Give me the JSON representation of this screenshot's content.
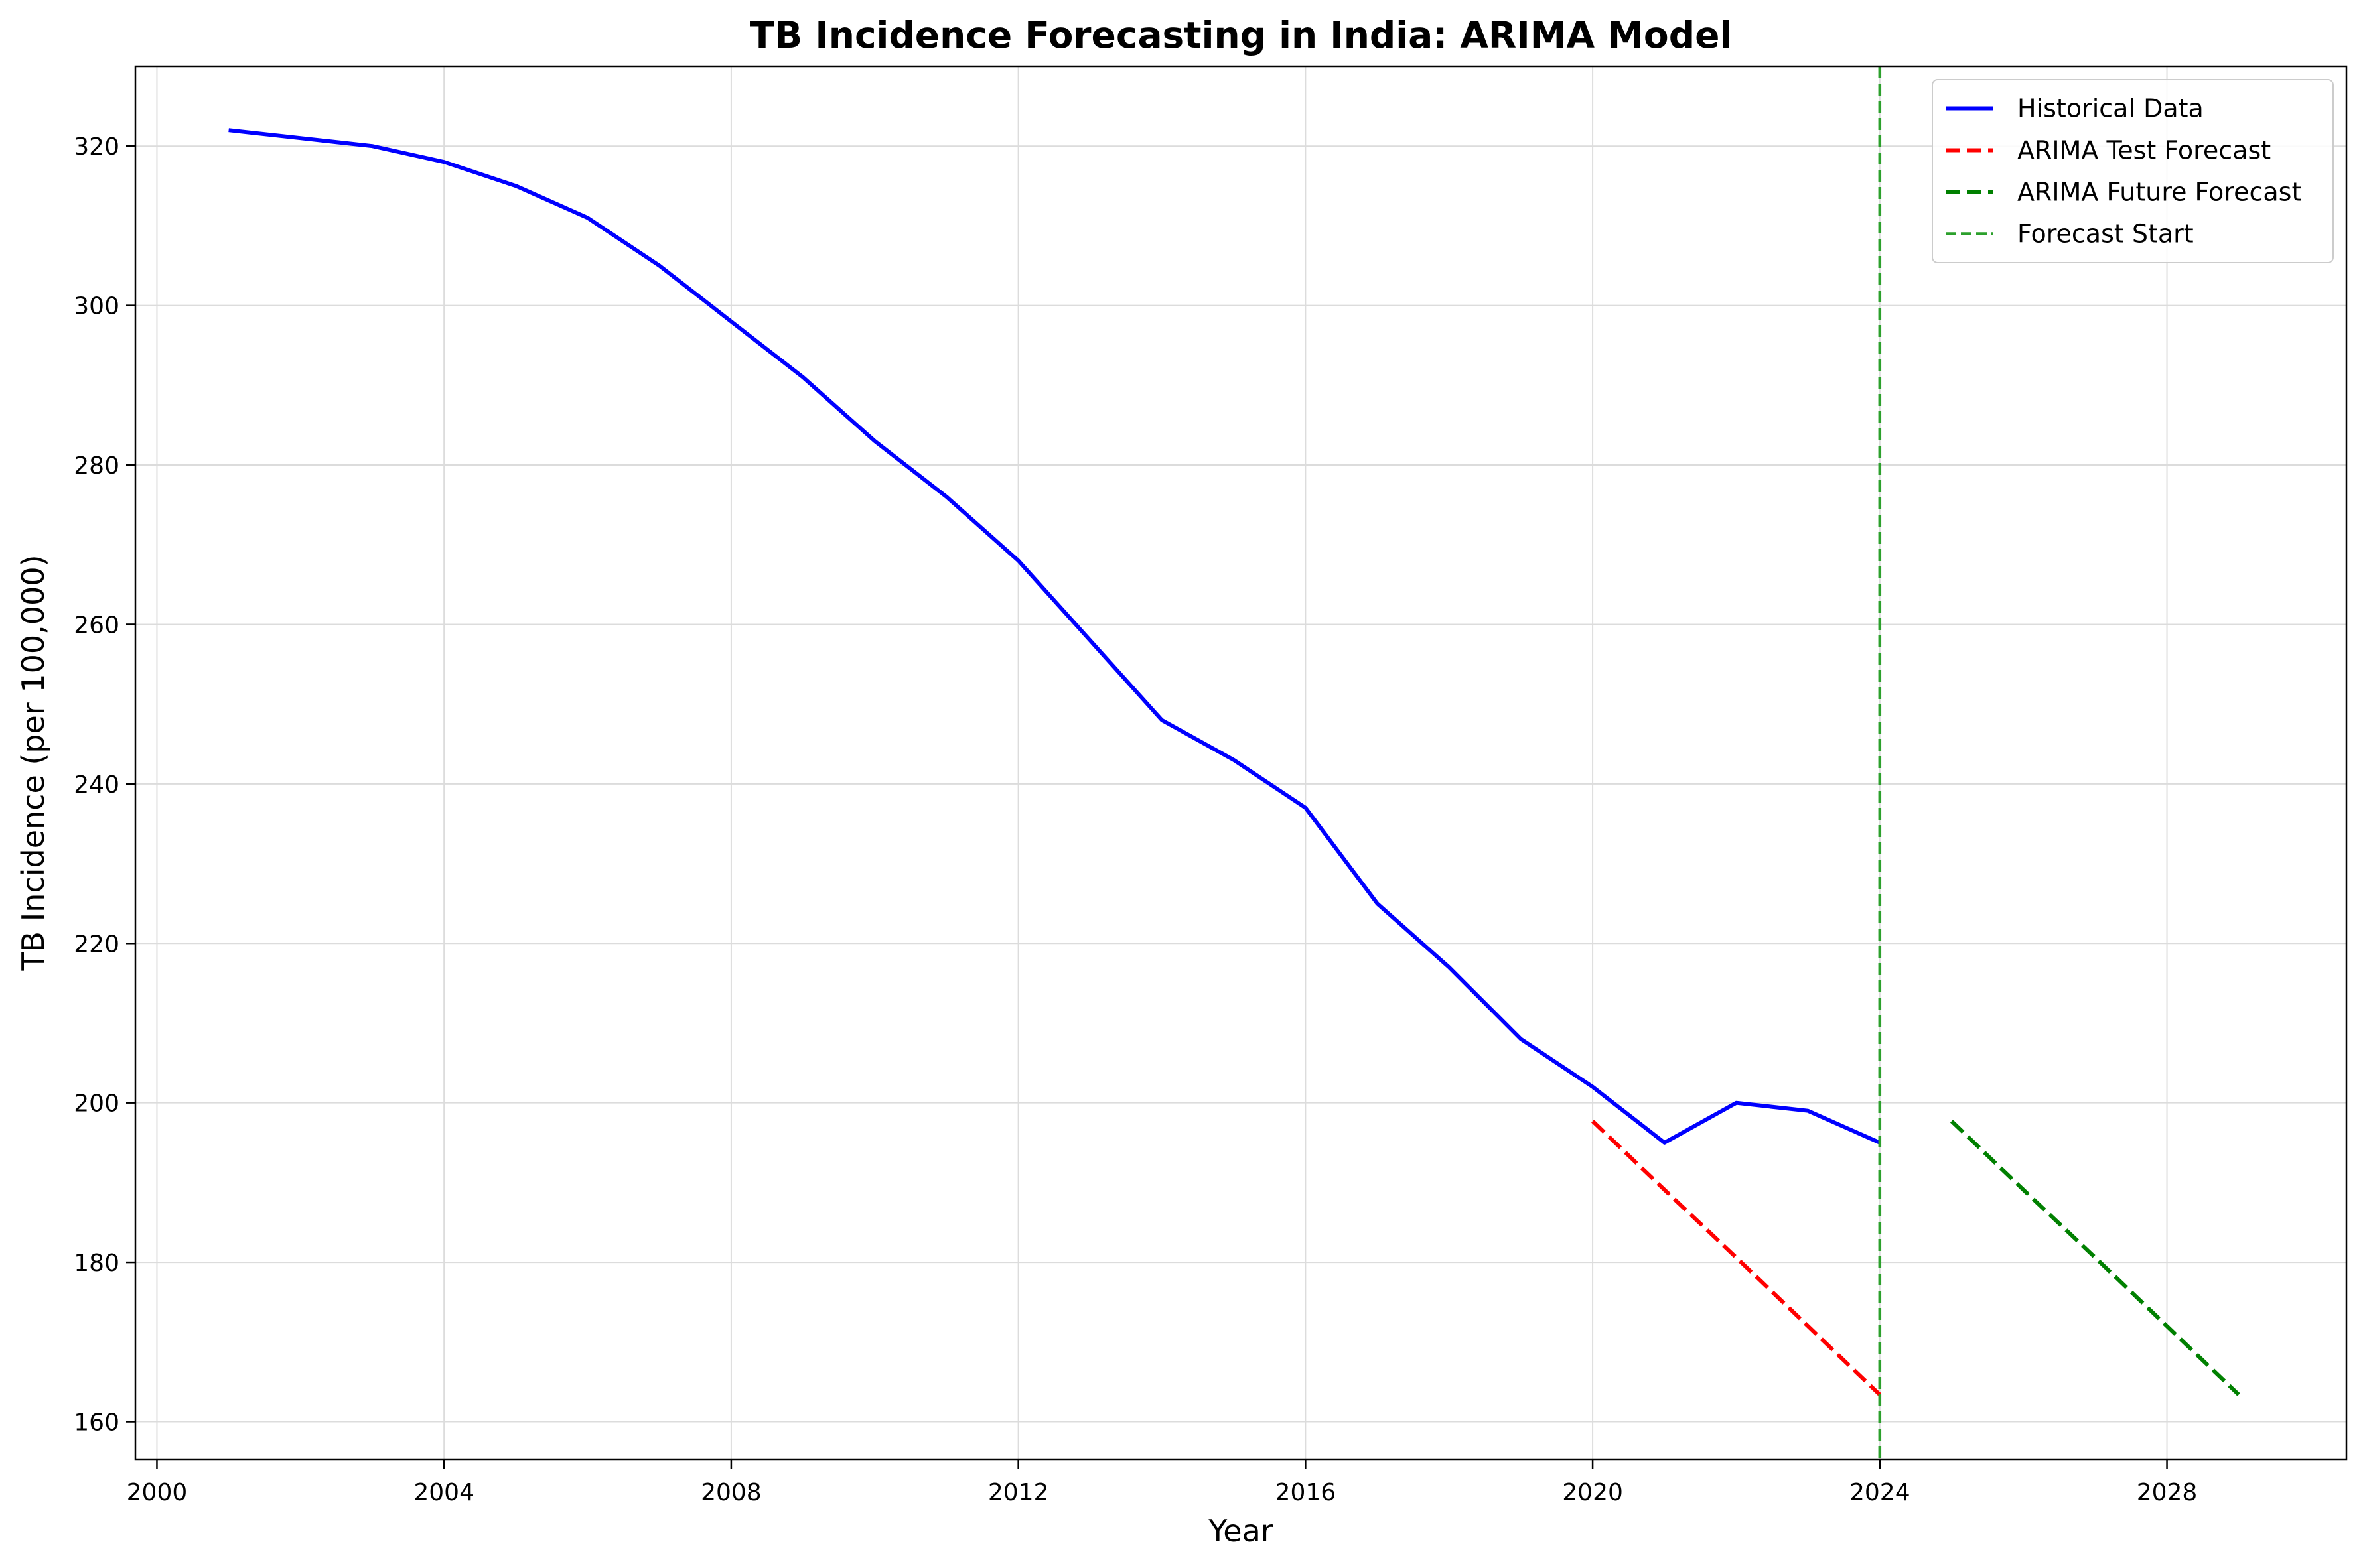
{
  "chart_data": {
    "type": "line",
    "title": "TB Incidence Forecasting in India: ARIMA Model",
    "xlabel": "Year",
    "ylabel": "TB Incidence (per 100,000)",
    "xlim": [
      1999.7,
      2030.5
    ],
    "ylim": [
      155.3,
      330
    ],
    "xticks": [
      2000,
      2004,
      2008,
      2012,
      2016,
      2020,
      2024,
      2028
    ],
    "yticks": [
      160,
      180,
      200,
      220,
      240,
      260,
      280,
      300,
      320
    ],
    "grid": true,
    "legend_position": "top-right",
    "series": [
      {
        "name": "Historical Data",
        "color": "#0000ff",
        "style": "solid",
        "x": [
          2001,
          2002,
          2003,
          2004,
          2005,
          2006,
          2007,
          2008,
          2009,
          2010,
          2011,
          2012,
          2013,
          2014,
          2015,
          2016,
          2017,
          2018,
          2019,
          2020,
          2021,
          2022,
          2023,
          2024
        ],
        "y": [
          322,
          321,
          320,
          318,
          315,
          311,
          305,
          298,
          291,
          283,
          276,
          268,
          258,
          248,
          243,
          237,
          225,
          217,
          208,
          202,
          195,
          200,
          199,
          195
        ]
      },
      {
        "name": "ARIMA Test Forecast",
        "color": "#ff0000",
        "style": "dashed",
        "x": [
          2020,
          2021,
          2022,
          2023,
          2024
        ],
        "y": [
          197.7,
          189.1,
          180.6,
          172.0,
          163.4
        ]
      },
      {
        "name": "ARIMA Future Forecast",
        "color": "#008000",
        "style": "dashed",
        "x": [
          2025,
          2026,
          2027,
          2028,
          2029
        ],
        "y": [
          197.7,
          189.1,
          180.6,
          172.0,
          163.4
        ]
      }
    ],
    "vlines": [
      {
        "name": "Forecast Start",
        "x": 2024,
        "color": "#2ca02c",
        "style": "dashed"
      }
    ]
  }
}
